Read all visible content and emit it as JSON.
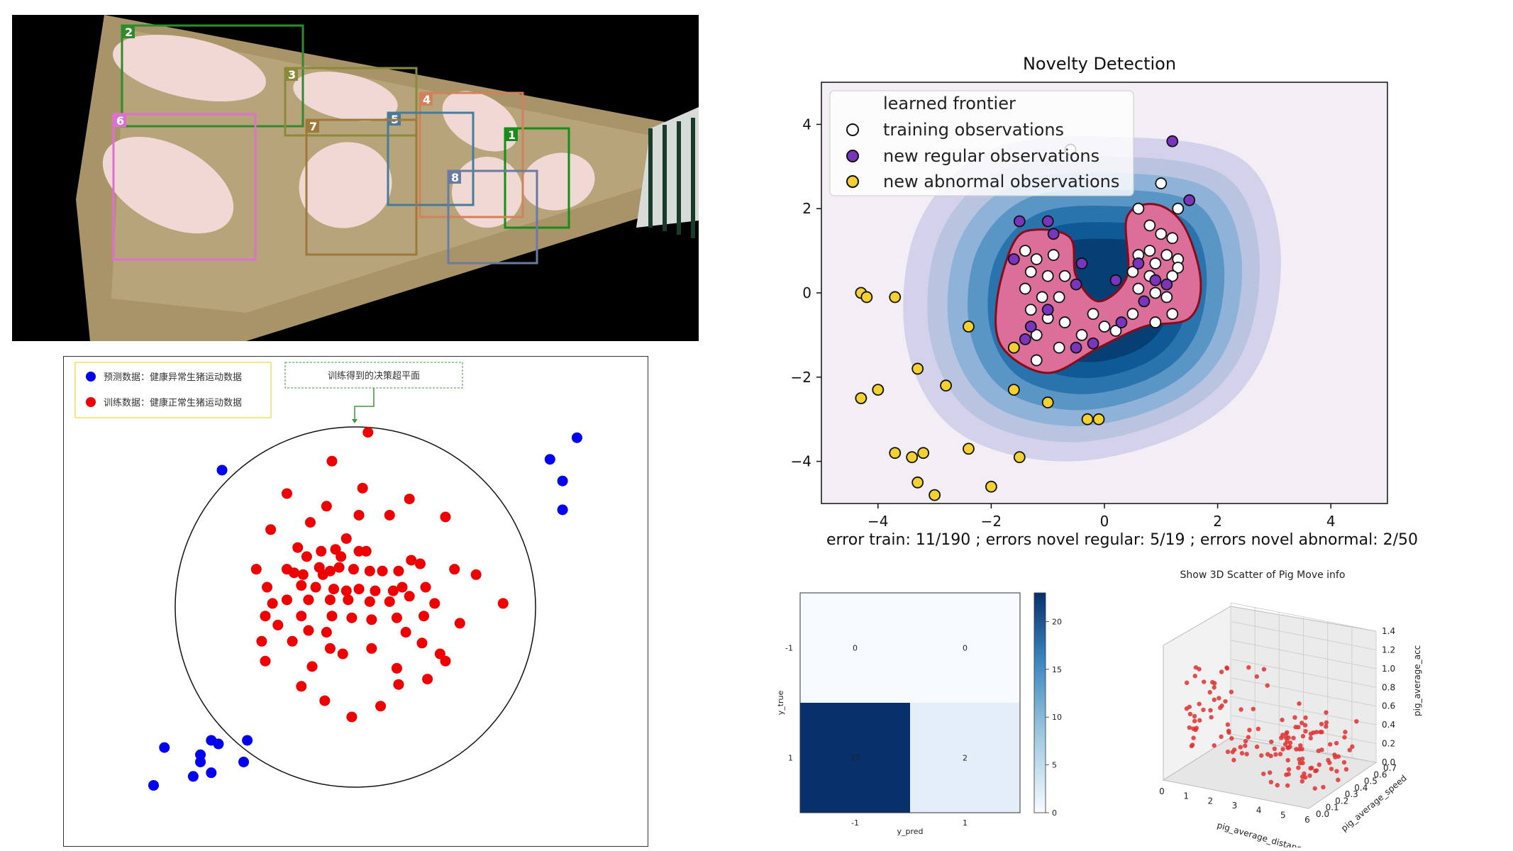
{
  "camera_panel": {
    "description_icon": "pen-camera-image",
    "boxes": [
      {
        "id": "1",
        "color": "#1a8a1a"
      },
      {
        "id": "2",
        "color": "#2e8b2e"
      },
      {
        "id": "3",
        "color": "#8a8a3a"
      },
      {
        "id": "4",
        "color": "#d0825a"
      },
      {
        "id": "5",
        "color": "#4a7a9a"
      },
      {
        "id": "6",
        "color": "#e070d0"
      },
      {
        "id": "7",
        "color": "#a0783a"
      },
      {
        "id": "8",
        "color": "#6a7aa0"
      }
    ]
  },
  "svdd_panel": {
    "legend": [
      {
        "label": "预测数据：健康异常生猪运动数据",
        "color": "#0000ee"
      },
      {
        "label": "训练数据：健康正常生猪运动数据",
        "color": "#ee0000"
      }
    ],
    "annotation": "训练得到的决策超平面",
    "chart_data": {
      "type": "scatter",
      "series": [
        {
          "name": "预测数据：健康异常生猪运动数据",
          "color": "#0000ee",
          "points": [
            [
              -0.74,
              0.76
            ],
            [
              1.08,
              0.82
            ],
            [
              1.15,
              0.7
            ],
            [
              1.15,
              0.54
            ],
            [
              1.23,
              0.94
            ],
            [
              -1.06,
              -0.78
            ],
            [
              -0.86,
              -0.82
            ],
            [
              -0.8,
              -0.74
            ],
            [
              -0.76,
              -0.76
            ],
            [
              -0.86,
              -0.86
            ],
            [
              -0.9,
              -0.94
            ],
            [
              -0.8,
              -0.92
            ],
            [
              -0.62,
              -0.86
            ],
            [
              -0.6,
              -0.74
            ],
            [
              -1.12,
              -0.99
            ]
          ]
        },
        {
          "name": "训练数据：健康正常生猪运动数据",
          "color": "#ee0000",
          "points": [
            [
              0.07,
              0.97
            ],
            [
              -0.13,
              0.81
            ],
            [
              0.04,
              0.66
            ],
            [
              -0.38,
              0.63
            ],
            [
              0.3,
              0.6
            ],
            [
              -0.16,
              0.56
            ],
            [
              0.02,
              0.51
            ],
            [
              0.19,
              0.51
            ],
            [
              0.5,
              0.5
            ],
            [
              -0.25,
              0.47
            ],
            [
              -0.47,
              0.43
            ],
            [
              -0.05,
              0.38
            ],
            [
              -0.32,
              0.33
            ],
            [
              -0.11,
              0.32
            ],
            [
              0.02,
              0.31
            ],
            [
              0.06,
              0.31
            ],
            [
              -0.19,
              0.31
            ],
            [
              -0.27,
              0.28
            ],
            [
              -0.08,
              0.28
            ],
            [
              0.31,
              0.26
            ],
            [
              -0.2,
              0.22
            ],
            [
              -0.09,
              0.22
            ],
            [
              -0.01,
              0.21
            ],
            [
              0.08,
              0.2
            ],
            [
              0.15,
              0.2
            ],
            [
              -0.14,
              0.2
            ],
            [
              0.24,
              0.2
            ],
            [
              -0.38,
              0.21
            ],
            [
              -0.55,
              0.21
            ],
            [
              -0.34,
              0.19
            ],
            [
              -0.29,
              0.18
            ],
            [
              -0.18,
              0.18
            ],
            [
              0.36,
              0.24
            ],
            [
              0.55,
              0.21
            ],
            [
              0.67,
              0.18
            ],
            [
              -0.49,
              0.11
            ],
            [
              -0.3,
              0.12
            ],
            [
              -0.22,
              0.11
            ],
            [
              -0.12,
              0.1
            ],
            [
              -0.05,
              0.09
            ],
            [
              0.02,
              0.1
            ],
            [
              0.11,
              0.09
            ],
            [
              0.21,
              0.09
            ],
            [
              0.26,
              0.11
            ],
            [
              0.39,
              0.11
            ],
            [
              -0.38,
              0.04
            ],
            [
              -0.46,
              0.02
            ],
            [
              -0.26,
              0.04
            ],
            [
              -0.14,
              0.04
            ],
            [
              -0.04,
              0.04
            ],
            [
              0.08,
              0.03
            ],
            [
              0.19,
              0.03
            ],
            [
              0.3,
              0.06
            ],
            [
              0.44,
              0.02
            ],
            [
              0.82,
              0.02
            ],
            [
              -0.5,
              -0.05
            ],
            [
              -0.3,
              -0.05
            ],
            [
              -0.13,
              -0.05
            ],
            [
              -0.02,
              -0.06
            ],
            [
              0.09,
              -0.07
            ],
            [
              0.23,
              -0.06
            ],
            [
              0.38,
              -0.05
            ],
            [
              0.58,
              -0.09
            ],
            [
              -0.43,
              -0.1
            ],
            [
              -0.26,
              -0.13
            ],
            [
              -0.16,
              -0.14
            ],
            [
              0.28,
              -0.14
            ],
            [
              -0.35,
              -0.19
            ],
            [
              -0.14,
              -0.23
            ],
            [
              0.09,
              -0.23
            ],
            [
              0.37,
              -0.2
            ],
            [
              -0.52,
              -0.19
            ],
            [
              -0.07,
              -0.26
            ],
            [
              0.47,
              -0.26
            ],
            [
              0.23,
              -0.34
            ],
            [
              -0.24,
              -0.33
            ],
            [
              -0.5,
              -0.3
            ],
            [
              0.4,
              -0.4
            ],
            [
              -0.3,
              -0.44
            ],
            [
              -0.17,
              -0.52
            ],
            [
              0.14,
              -0.55
            ],
            [
              0.24,
              -0.43
            ],
            [
              0.5,
              -0.3
            ],
            [
              -0.02,
              -0.61
            ]
          ]
        }
      ],
      "boundary": "circle"
    }
  },
  "novelty_panel": {
    "chart_data": {
      "type": "scatter",
      "title": "Novelty Detection",
      "xlim": [
        -5,
        5
      ],
      "ylim": [
        -5,
        5
      ],
      "xticks": [
        "−4",
        "−2",
        "0",
        "2",
        "4"
      ],
      "yticks": [
        "4",
        "2",
        "0",
        "−2",
        "−4"
      ],
      "legend": [
        "learned frontier",
        "training observations",
        "new regular observations",
        "new abnormal observations"
      ],
      "footer": "error train: 11/190 ; errors novel regular: 5/19 ; errors novel abnormal: 2/50",
      "series": [
        {
          "name": "new regular observations",
          "color": "#7a35bf",
          "points": [
            [
              1.2,
              3.6
            ],
            [
              1.5,
              2.2
            ],
            [
              -1.5,
              1.7
            ],
            [
              -1.0,
              1.7
            ],
            [
              -1.6,
              0.8
            ],
            [
              -0.9,
              1.4
            ],
            [
              -0.4,
              0.7
            ],
            [
              -0.5,
              0.2
            ],
            [
              0.2,
              0.3
            ],
            [
              0.6,
              0.7
            ],
            [
              0.9,
              0.3
            ],
            [
              1.1,
              0.2
            ],
            [
              0.7,
              -0.2
            ],
            [
              -1.3,
              -0.8
            ],
            [
              -1.4,
              -1.1
            ],
            [
              -0.5,
              -1.3
            ],
            [
              -0.2,
              -1.2
            ],
            [
              0.3,
              -0.7
            ],
            [
              -1.0,
              -0.4
            ]
          ]
        },
        {
          "name": "new abnormal observations",
          "color": "#f2d130",
          "points": [
            [
              -4.3,
              0.0
            ],
            [
              -4.2,
              -0.1
            ],
            [
              -3.7,
              -0.1
            ],
            [
              -2.4,
              -0.8
            ],
            [
              -1.6,
              -1.3
            ],
            [
              -3.3,
              -1.8
            ],
            [
              -4.3,
              -2.5
            ],
            [
              -4.0,
              -2.3
            ],
            [
              -2.8,
              -2.2
            ],
            [
              -1.6,
              -2.3
            ],
            [
              -1.0,
              -2.6
            ],
            [
              -0.3,
              -3.0
            ],
            [
              -0.1,
              -3.0
            ],
            [
              -3.7,
              -3.8
            ],
            [
              -3.4,
              -3.9
            ],
            [
              -3.2,
              -3.8
            ],
            [
              -2.4,
              -3.7
            ],
            [
              -1.5,
              -3.9
            ],
            [
              -3.3,
              -4.5
            ],
            [
              -2.0,
              -4.6
            ],
            [
              -3.0,
              -4.8
            ]
          ]
        },
        {
          "name": "training observations",
          "color": "#ffffff",
          "points": [
            [
              1.0,
              2.6
            ],
            [
              0.6,
              2.0
            ],
            [
              1.3,
              2.0
            ],
            [
              0.8,
              1.6
            ],
            [
              1.0,
              1.4
            ],
            [
              1.2,
              1.3
            ],
            [
              0.8,
              1.0
            ],
            [
              1.1,
              0.9
            ],
            [
              1.3,
              0.8
            ],
            [
              0.6,
              0.9
            ],
            [
              0.9,
              0.7
            ],
            [
              1.3,
              0.6
            ],
            [
              0.5,
              0.5
            ],
            [
              0.8,
              0.4
            ],
            [
              1.2,
              0.4
            ],
            [
              0.6,
              0.1
            ],
            [
              0.9,
              0.0
            ],
            [
              1.1,
              -0.1
            ],
            [
              1.2,
              -0.5
            ],
            [
              0.5,
              -0.5
            ],
            [
              0.9,
              -0.7
            ],
            [
              -1.4,
              1.0
            ],
            [
              -1.2,
              0.8
            ],
            [
              -0.9,
              0.9
            ],
            [
              -1.3,
              0.5
            ],
            [
              -1.0,
              0.4
            ],
            [
              -0.7,
              0.4
            ],
            [
              -1.4,
              0.1
            ],
            [
              -1.1,
              -0.1
            ],
            [
              -0.8,
              -0.1
            ],
            [
              -1.3,
              -0.4
            ],
            [
              -1.0,
              -0.6
            ],
            [
              -0.7,
              -0.7
            ],
            [
              -1.2,
              -1.0
            ],
            [
              -0.8,
              -1.3
            ],
            [
              -0.4,
              -1.0
            ],
            [
              0.0,
              -0.8
            ],
            [
              -0.2,
              -0.5
            ],
            [
              0.2,
              -0.9
            ],
            [
              -1.6,
              -1.3
            ],
            [
              -1.2,
              -1.6
            ],
            [
              -0.6,
              3.4
            ]
          ]
        }
      ]
    }
  },
  "confusion_panel": {
    "chart_data": {
      "type": "heatmap",
      "xlabel": "y_pred",
      "ylabel": "y_true",
      "x": [
        "-1",
        "1"
      ],
      "y": [
        "-1",
        "1"
      ],
      "values": [
        [
          0,
          0
        ],
        [
          23,
          2
        ]
      ],
      "colorbar_ticks": [
        "20",
        "15",
        "10",
        "5",
        "0"
      ],
      "vmin": 0,
      "vmax": 23
    }
  },
  "scatter3d_panel": {
    "chart_data": {
      "type": "scatter",
      "title": "Show 3D Scatter of Pig Move info",
      "xlabel": "pig_average_distance",
      "ylabel": "pig_average_speed",
      "zlabel": "pig_average_acc",
      "xticks": [
        "0",
        "1",
        "2",
        "3",
        "4",
        "5",
        "6"
      ],
      "yticks": [
        "0.0",
        "0.1",
        "0.2",
        "0.3",
        "0.4",
        "0.5",
        "0.6",
        "0.7"
      ],
      "zticks": [
        "0.0",
        "0.2",
        "0.4",
        "0.6",
        "0.8",
        "1.0",
        "1.2",
        "1.4"
      ],
      "color": "#e03030"
    }
  }
}
